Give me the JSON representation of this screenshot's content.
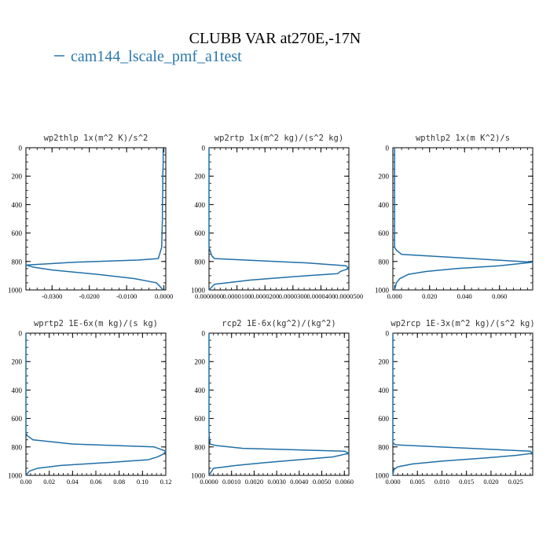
{
  "figure": {
    "title": "CLUBB VAR at270E,-17N",
    "legend_label": "cam144_lscale_pmf_a1test",
    "legend_color": "#2a77ad",
    "line_color": "#1f6fa8"
  },
  "chart_data": [
    {
      "type": "line",
      "title": "wp2thlp   1x(m^2 K)/s^2",
      "xlim": [
        -0.037,
        0.0005
      ],
      "ylim": [
        1000,
        0
      ],
      "x_ticks": [
        -0.03,
        -0.02,
        -0.01,
        0.0
      ],
      "x_tick_labels": [
        "-0.0300",
        "-0.0200",
        "-0.0100",
        "0.0000"
      ],
      "y_ticks": [
        0,
        200,
        400,
        600,
        800,
        1000
      ],
      "y_tick_labels": [
        "0",
        "200",
        "400",
        "600",
        "800",
        "1000"
      ],
      "grid": false,
      "series": [
        {
          "x": [
            -0.0002,
            -0.0002,
            -0.0003,
            -0.0003,
            -0.0004,
            -0.0004,
            -0.0005,
            -0.0006,
            -0.0015,
            -0.007,
            -0.024,
            -0.037,
            -0.035,
            -0.03,
            -0.018,
            -0.008,
            -0.002,
            -0.0002
          ],
          "y": [
            0,
            100,
            200,
            300,
            400,
            500,
            600,
            700,
            780,
            790,
            805,
            825,
            840,
            860,
            890,
            920,
            950,
            1000
          ]
        }
      ]
    },
    {
      "type": "line",
      "title": "wp2rtp   1x(m^2 kg)/(s^2 kg)",
      "xlim": [
        0,
        5e-05
      ],
      "ylim": [
        1000,
        0
      ],
      "x_ticks": [
        0,
        1e-05,
        2e-05,
        3e-05,
        4e-05,
        5e-05
      ],
      "x_tick_labels": [
        "0.0000000",
        "0.0000100",
        "0.0000200",
        "0.0000300",
        "0.0000400",
        "0.0000500"
      ],
      "y_ticks": [
        0,
        200,
        400,
        600,
        800,
        1000
      ],
      "y_tick_labels": [
        "0",
        "200",
        "400",
        "600",
        "800",
        "1000"
      ],
      "grid": false,
      "series": [
        {
          "x": [
            0,
            0,
            0,
            0,
            0,
            0,
            0,
            0,
            1e-06,
            2e-06,
            3.5e-05,
            4.9e-05,
            5e-05,
            4.7e-05,
            4.6e-05,
            3.5e-05,
            1.5e-05,
            2e-06,
            0
          ],
          "y": [
            0,
            100,
            200,
            300,
            400,
            500,
            600,
            700,
            760,
            780,
            810,
            830,
            850,
            870,
            885,
            900,
            930,
            960,
            1000
          ]
        }
      ]
    },
    {
      "type": "line",
      "title": "wpthlp2   1x(m K^2)/s",
      "xlim": [
        -0.001,
        0.079
      ],
      "ylim": [
        1000,
        0
      ],
      "x_ticks": [
        0.0,
        0.02,
        0.04,
        0.06
      ],
      "x_tick_labels": [
        "0.000",
        "0.020",
        "0.040",
        "0.060"
      ],
      "y_ticks": [
        0,
        200,
        400,
        600,
        800,
        1000
      ],
      "y_tick_labels": [
        "0",
        "200",
        "400",
        "600",
        "800",
        "1000"
      ],
      "grid": false,
      "series": [
        {
          "x": [
            0,
            0,
            0,
            0,
            0,
            0,
            0,
            0,
            0.001,
            0.004,
            0.045,
            0.079,
            0.06,
            0.035,
            0.018,
            0.008,
            0.003,
            0.001,
            0
          ],
          "y": [
            0,
            100,
            200,
            300,
            400,
            500,
            600,
            700,
            720,
            750,
            780,
            805,
            830,
            850,
            870,
            890,
            920,
            950,
            1000
          ]
        }
      ]
    },
    {
      "type": "line",
      "title": "wprtp2   1E-6x(m kg)/(s kg)",
      "xlim": [
        0,
        0.12
      ],
      "ylim": [
        1000,
        0
      ],
      "x_ticks": [
        0.0,
        0.02,
        0.04,
        0.06,
        0.08,
        0.1,
        0.12
      ],
      "x_tick_labels": [
        "0.00",
        "0.02",
        "0.04",
        "0.06",
        "0.08",
        "0.10",
        "0.12"
      ],
      "y_ticks": [
        0,
        200,
        400,
        600,
        800,
        1000
      ],
      "y_tick_labels": [
        "0",
        "200",
        "400",
        "600",
        "800",
        "1000"
      ],
      "grid": false,
      "series": [
        {
          "x": [
            0,
            0,
            0,
            0,
            0,
            0,
            0,
            0,
            0.001,
            0.006,
            0.04,
            0.11,
            0.12,
            0.118,
            0.113,
            0.105,
            0.07,
            0.03,
            0.01,
            0.003,
            0
          ],
          "y": [
            0,
            100,
            200,
            300,
            400,
            500,
            600,
            700,
            720,
            750,
            780,
            800,
            830,
            850,
            870,
            890,
            910,
            930,
            950,
            970,
            1000
          ]
        }
      ]
    },
    {
      "type": "line",
      "title": "rcp2   1E-6x(kg^2)/(kg^2)",
      "xlim": [
        0,
        0.0062
      ],
      "ylim": [
        1000,
        0
      ],
      "x_ticks": [
        0.0,
        0.001,
        0.002,
        0.003,
        0.004,
        0.005,
        0.006
      ],
      "x_tick_labels": [
        "0.0000",
        "0.0010",
        "0.0020",
        "0.0030",
        "0.0040",
        "0.0050",
        "0.0060"
      ],
      "y_ticks": [
        0,
        200,
        400,
        600,
        800,
        1000
      ],
      "y_tick_labels": [
        "0",
        "200",
        "400",
        "600",
        "800",
        "1000"
      ],
      "grid": false,
      "series": [
        {
          "x": [
            0,
            0,
            0,
            0,
            0,
            0,
            0,
            0,
            5e-05,
            0.0003,
            0.0015,
            0.006,
            0.0062,
            0.0055,
            0.004,
            0.0025,
            0.0012,
            0.0002,
            0
          ],
          "y": [
            0,
            100,
            200,
            300,
            400,
            500,
            600,
            700,
            780,
            790,
            810,
            830,
            845,
            870,
            890,
            910,
            930,
            950,
            1000
          ]
        }
      ]
    },
    {
      "type": "line",
      "title": "wp2rcp   1E-3x(m^2 kg)/(s^2 kg)",
      "xlim": [
        0,
        0.0285
      ],
      "ylim": [
        1000,
        0
      ],
      "x_ticks": [
        0.0,
        0.005,
        0.01,
        0.015,
        0.02,
        0.025
      ],
      "x_tick_labels": [
        "0.000",
        "0.005",
        "0.010",
        "0.015",
        "0.020",
        "0.025"
      ],
      "y_ticks": [
        0,
        200,
        400,
        600,
        800,
        1000
      ],
      "y_tick_labels": [
        "0",
        "200",
        "400",
        "600",
        "800",
        "1000"
      ],
      "grid": false,
      "series": [
        {
          "x": [
            0,
            0,
            0,
            0,
            0,
            0,
            0,
            0,
            0,
            0.0005,
            0.028,
            0.0285,
            0.025,
            0.018,
            0.01,
            0.004,
            0.001,
            0.0002,
            0
          ],
          "y": [
            0,
            100,
            200,
            300,
            400,
            500,
            600,
            700,
            770,
            785,
            830,
            845,
            860,
            880,
            900,
            920,
            940,
            960,
            1000
          ]
        }
      ]
    }
  ]
}
